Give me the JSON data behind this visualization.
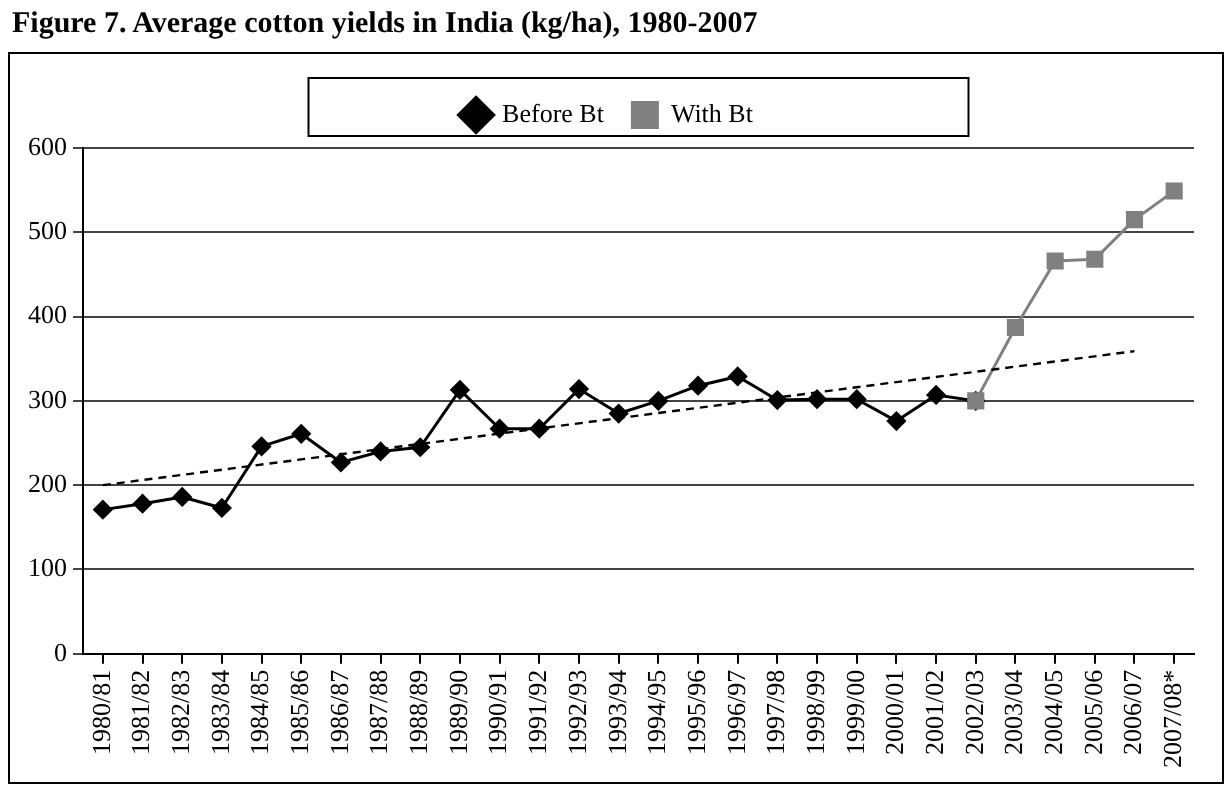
{
  "chart_data": {
    "type": "line",
    "title": "Figure 7. Average cotton yields in India (kg/ha), 1980-2007",
    "categories": [
      "1980/81",
      "1981/82",
      "1982/83",
      "1983/84",
      "1984/85",
      "1985/86",
      "1986/87",
      "1987/88",
      "1988/89",
      "1989/90",
      "1990/91",
      "1991/92",
      "1992/93",
      "1993/94",
      "1994/95",
      "1995/96",
      "1996/97",
      "1997/98",
      "1998/99",
      "1999/00",
      "2000/01",
      "2001/02",
      "2002/03",
      "2003/04",
      "2004/05",
      "2005/06",
      "2006/07",
      "2007/08*"
    ],
    "series": [
      {
        "name": "Before Bt",
        "color": "#000000",
        "marker": "diamond",
        "values": [
          171,
          178,
          186,
          173,
          246,
          261,
          227,
          240,
          245,
          313,
          267,
          267,
          314,
          285,
          300,
          318,
          329,
          301,
          302,
          302,
          276,
          307,
          300,
          null,
          null,
          null,
          null,
          null
        ]
      },
      {
        "name": "With Bt",
        "color": "#808080",
        "marker": "square",
        "values": [
          null,
          null,
          null,
          null,
          null,
          null,
          null,
          null,
          null,
          null,
          null,
          null,
          null,
          null,
          null,
          null,
          null,
          null,
          null,
          null,
          null,
          null,
          300,
          387,
          466,
          468,
          515,
          549
        ]
      },
      {
        "type": "line",
        "color": "#000000",
        "line_style": "dashed",
        "marker": "none",
        "x": [
          "1980/81",
          "2006/07"
        ],
        "values": [
          200,
          359
        ]
      }
    ],
    "ylim": [
      0,
      600
    ],
    "yticks": [
      0,
      100,
      200,
      300,
      400,
      500,
      600
    ],
    "grid": "y",
    "legend": "top"
  }
}
